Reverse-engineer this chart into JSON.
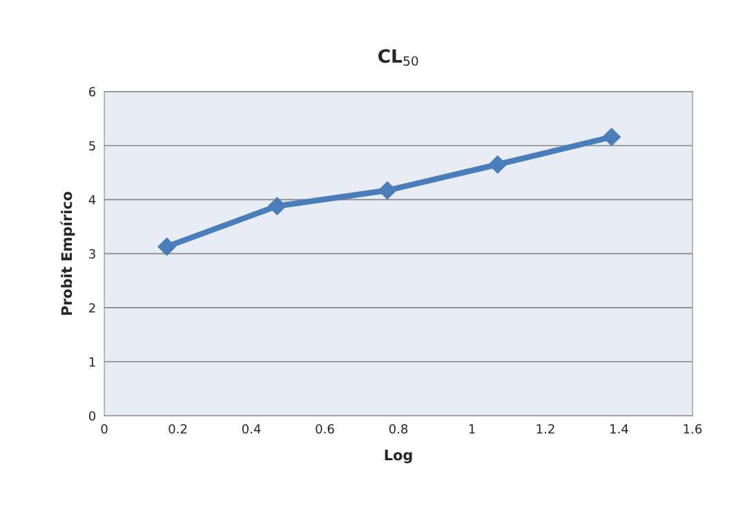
{
  "chart_data": {
    "type": "line",
    "title": "CL$_{50}$",
    "xlabel": "Log",
    "ylabel": "Probit Empírico",
    "x": [
      0.17,
      0.47,
      0.77,
      1.07,
      1.38
    ],
    "series": [
      {
        "color": "#4a7ebb",
        "values": [
          3.13,
          3.88,
          4.17,
          4.65,
          5.16
        ]
      }
    ],
    "xlim": [
      0,
      1.6
    ],
    "xticks": [
      0,
      0.2,
      0.4,
      0.6,
      0.8,
      1,
      1.2,
      1.4,
      1.6
    ],
    "ylim": [
      0,
      6
    ],
    "yticks": [
      0,
      1,
      2,
      3,
      4,
      5,
      6
    ],
    "grid": "y",
    "legend": false,
    "marker": "diamond",
    "line_style": "solid"
  }
}
